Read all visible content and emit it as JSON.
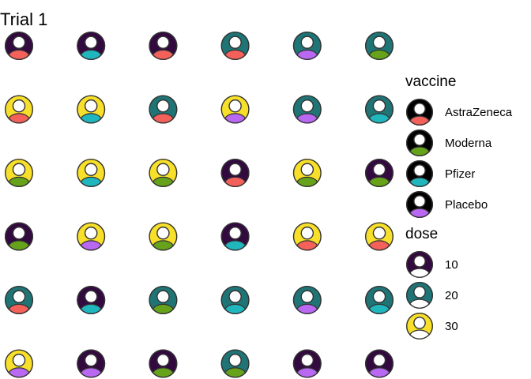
{
  "chart_data": {
    "type": "pictogram",
    "title": "Trial 1",
    "rows": 6,
    "cols": 6,
    "dose_colors": {
      "10": "#330a40",
      "20": "#1f7576",
      "30": "#f7df2a"
    },
    "vaccine_colors": {
      "AstraZeneca": "#f4605a",
      "Moderna": "#66a31a",
      "Pfizer": "#20b6bd",
      "Placebo": "#b968f2"
    },
    "cells": [
      {
        "dose": 10,
        "vaccine": "AstraZeneca"
      },
      {
        "dose": 10,
        "vaccine": "Pfizer"
      },
      {
        "dose": 10,
        "vaccine": "AstraZeneca"
      },
      {
        "dose": 20,
        "vaccine": "AstraZeneca"
      },
      {
        "dose": 20,
        "vaccine": "Placebo"
      },
      {
        "dose": 20,
        "vaccine": "Moderna"
      },
      {
        "dose": 30,
        "vaccine": "AstraZeneca"
      },
      {
        "dose": 30,
        "vaccine": "Pfizer"
      },
      {
        "dose": 20,
        "vaccine": "AstraZeneca"
      },
      {
        "dose": 30,
        "vaccine": "Placebo"
      },
      {
        "dose": 20,
        "vaccine": "Placebo"
      },
      {
        "dose": 20,
        "vaccine": "Pfizer"
      },
      {
        "dose": 30,
        "vaccine": "Moderna"
      },
      {
        "dose": 30,
        "vaccine": "Pfizer"
      },
      {
        "dose": 30,
        "vaccine": "Moderna"
      },
      {
        "dose": 10,
        "vaccine": "AstraZeneca"
      },
      {
        "dose": 30,
        "vaccine": "Moderna"
      },
      {
        "dose": 10,
        "vaccine": "Moderna"
      },
      {
        "dose": 10,
        "vaccine": "Moderna"
      },
      {
        "dose": 30,
        "vaccine": "Placebo"
      },
      {
        "dose": 30,
        "vaccine": "Moderna"
      },
      {
        "dose": 10,
        "vaccine": "Pfizer"
      },
      {
        "dose": 30,
        "vaccine": "AstraZeneca"
      },
      {
        "dose": 30,
        "vaccine": "AstraZeneca"
      },
      {
        "dose": 20,
        "vaccine": "AstraZeneca"
      },
      {
        "dose": 10,
        "vaccine": "Pfizer"
      },
      {
        "dose": 20,
        "vaccine": "Moderna"
      },
      {
        "dose": 20,
        "vaccine": "Pfizer"
      },
      {
        "dose": 20,
        "vaccine": "Placebo"
      },
      {
        "dose": 20,
        "vaccine": "Pfizer"
      },
      {
        "dose": 30,
        "vaccine": "Placebo"
      },
      {
        "dose": 10,
        "vaccine": "Placebo"
      },
      {
        "dose": 10,
        "vaccine": "Moderna"
      },
      {
        "dose": 20,
        "vaccine": "Moderna"
      },
      {
        "dose": 10,
        "vaccine": "Placebo"
      },
      {
        "dose": 10,
        "vaccine": "Placebo"
      }
    ],
    "legend": {
      "vaccine_title": "vaccine",
      "vaccine_items": [
        "AstraZeneca",
        "Moderna",
        "Pfizer",
        "Placebo"
      ],
      "dose_title": "dose",
      "dose_items": [
        "10",
        "20",
        "30"
      ]
    }
  }
}
